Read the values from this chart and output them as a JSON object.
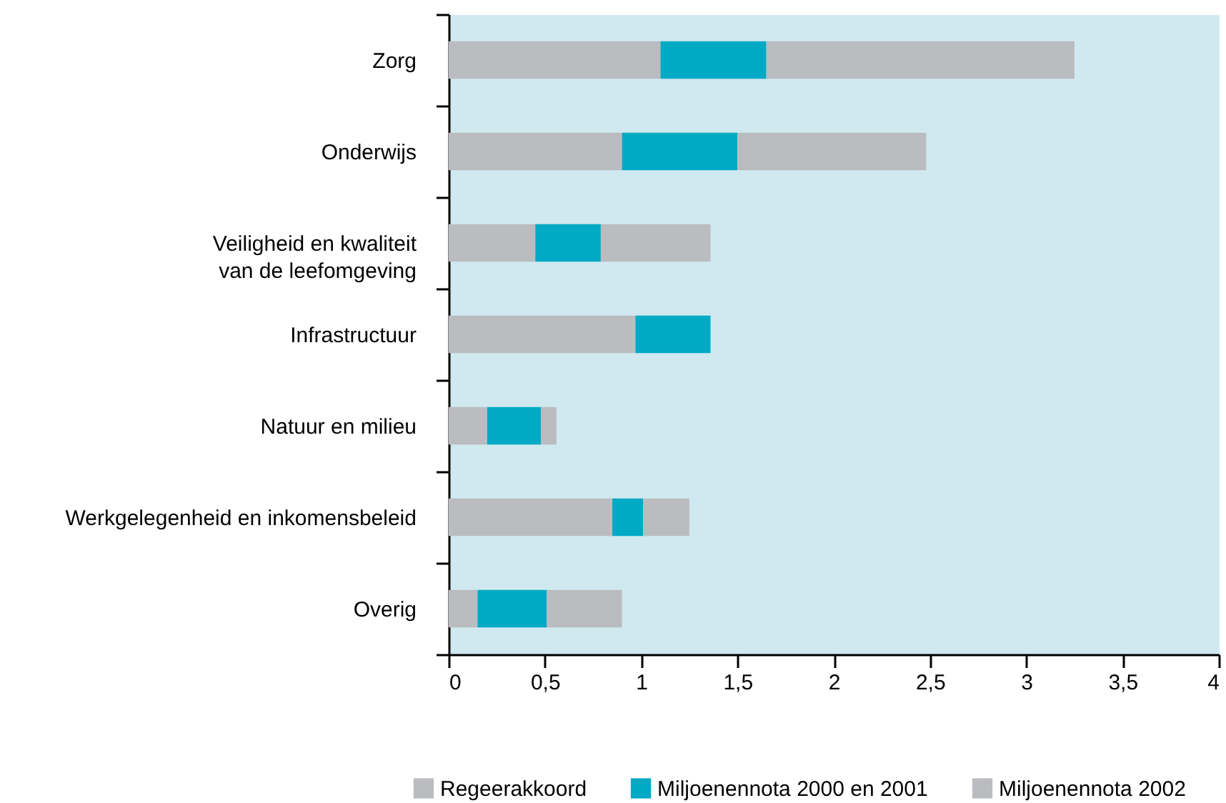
{
  "chart_data": {
    "type": "bar",
    "orientation": "horizontal",
    "stacked": true,
    "categories": [
      "Zorg",
      "Onderwijs",
      "Veiligheid en kwaliteit\nvan de leefomgeving",
      "Infrastructuur",
      "Natuur en milieu",
      "Werkgelegenheid en inkomensbeleid",
      "Overig"
    ],
    "series": [
      {
        "name": "Regeerakkoord",
        "color": "#bbbcc0",
        "values": [
          1.1,
          0.9,
          0.45,
          0.97,
          0.2,
          0.85,
          0.15
        ]
      },
      {
        "name": "Miljoenennota 2000 en 2001",
        "color": "#00a9c4",
        "values": [
          0.55,
          0.6,
          0.34,
          0.39,
          0.28,
          0.16,
          0.36
        ]
      },
      {
        "name": "Miljoenennota 2002",
        "color": "#bbbcc0",
        "values": [
          1.6,
          0.98,
          0.57,
          null,
          0.08,
          0.24,
          0.39
        ]
      }
    ],
    "xlim": [
      0,
      4
    ],
    "xticks": [
      0,
      {
        "value": 0.5,
        "label": "0,5"
      },
      1,
      {
        "value": 1.5,
        "label": "1,5"
      },
      2,
      {
        "value": 2.5,
        "label": "2,5"
      },
      3,
      {
        "value": 3.5,
        "label": "3,5"
      },
      4
    ],
    "legend": "bottom"
  }
}
